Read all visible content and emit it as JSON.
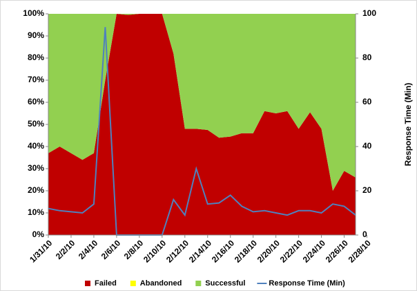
{
  "chart_data": {
    "type": "stacked-area-line",
    "categories": [
      "1/31/10",
      null,
      "2/2/10",
      null,
      "2/4/10",
      null,
      "2/6/10",
      null,
      "2/8/10",
      null,
      "2/10/10",
      null,
      "2/12/10",
      null,
      "2/14/10",
      null,
      "2/16/10",
      null,
      "2/18/10",
      null,
      "2/20/10",
      null,
      "2/22/10",
      null,
      "2/24/10",
      null,
      "2/26/10",
      null,
      "2/28/10"
    ],
    "series": [
      {
        "name": "Failed",
        "color": "#c00000",
        "values": [
          37,
          40,
          37,
          34,
          37,
          70,
          100,
          99.5,
          100,
          100,
          100,
          82,
          48,
          48,
          47.5,
          44,
          44.5,
          46,
          46,
          56,
          55,
          56,
          48,
          55.5,
          48,
          20,
          29,
          26,
          null
        ]
      },
      {
        "name": "Abandoned",
        "color": "#ffff00",
        "values": [
          0,
          0,
          0,
          0,
          0,
          0,
          0,
          0,
          0,
          0,
          0,
          0,
          0,
          0,
          0,
          0,
          0,
          0,
          0,
          0,
          0,
          0,
          0,
          0,
          0,
          0,
          0,
          0,
          null
        ]
      },
      {
        "name": "Successful",
        "color": "#92d050",
        "values": [
          63,
          60,
          63,
          66,
          63,
          30,
          0,
          0.5,
          0,
          0,
          0,
          18,
          52,
          52,
          52.5,
          56,
          55.5,
          54,
          54,
          44,
          45,
          44,
          52,
          44.5,
          52,
          80,
          71,
          74,
          null
        ]
      },
      {
        "name": "Response Time (Min)",
        "color": "#4f81bd",
        "axis": "y2",
        "values": [
          12,
          11,
          10.5,
          10,
          14,
          94,
          0,
          0,
          0,
          0,
          0,
          16,
          9,
          30,
          14,
          14.5,
          18,
          13,
          10.5,
          11,
          10,
          9,
          11,
          11,
          10,
          14,
          13,
          9,
          null
        ]
      }
    ],
    "ylim": [
      0,
      100
    ],
    "yticks": [
      {
        "value": 0,
        "label": "0%"
      },
      {
        "value": 10,
        "label": "10%"
      },
      {
        "value": 20,
        "label": "20%"
      },
      {
        "value": 30,
        "label": "30%"
      },
      {
        "value": 40,
        "label": "40%"
      },
      {
        "value": 50,
        "label": "50%"
      },
      {
        "value": 60,
        "label": "60%"
      },
      {
        "value": 70,
        "label": "70%"
      },
      {
        "value": 80,
        "label": "80%"
      },
      {
        "value": 90,
        "label": "90%"
      },
      {
        "value": 100,
        "label": "100%"
      }
    ],
    "y2lim": [
      0,
      100
    ],
    "y2ticks": [
      0,
      20,
      40,
      60,
      80,
      100
    ],
    "y2label": "Response Time (Min)",
    "legend": "bottom"
  }
}
